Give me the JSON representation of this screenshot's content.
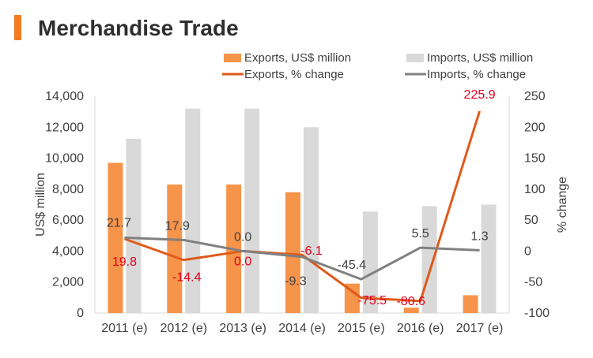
{
  "header": {
    "title": "Merchandise Trade",
    "accent_color": "#f47b20"
  },
  "chart_data": {
    "type": "bar",
    "categories": [
      "2011 (e)",
      "2012 (e)",
      "2013 (e)",
      "2014 (e)",
      "2015 (e)",
      "2016 (e)",
      "2017 (e)"
    ],
    "series": [
      {
        "name": "Exports, US$ million",
        "type": "bar",
        "axis": "left",
        "color": "#f6944a",
        "values": [
          9700,
          8300,
          8300,
          7800,
          1900,
          350,
          1150
        ]
      },
      {
        "name": "Imports, US$ million",
        "type": "bar",
        "axis": "left",
        "color": "#d9d9d9",
        "values": [
          11250,
          13200,
          13200,
          12000,
          6550,
          6900,
          7000
        ]
      },
      {
        "name": "Exports, % change",
        "type": "line",
        "axis": "right",
        "color": "#e05a1a",
        "values": [
          19.8,
          -14.4,
          0.0,
          -6.1,
          -75.5,
          -80.6,
          225.9
        ],
        "labels": [
          "19.8",
          "-14.4",
          "0.0",
          "-6.1",
          "-75.5",
          "-80.6",
          "225.9"
        ],
        "label_color": "#e0001b"
      },
      {
        "name": "Imports, % change",
        "type": "line",
        "axis": "right",
        "color": "#808080",
        "values": [
          21.7,
          17.9,
          0.0,
          -9.3,
          -45.4,
          5.5,
          1.3
        ],
        "labels": [
          "21.7",
          "17.9",
          "0.0",
          "-9.3",
          "-45.4",
          "5.5",
          "1.3"
        ],
        "label_color": "#404040"
      }
    ],
    "ylabel": "US$ million",
    "ylim": [
      0,
      14000
    ],
    "yticks": [
      "0",
      "2,000",
      "4,000",
      "6,000",
      "8,000",
      "10,000",
      "12,000",
      "14,000"
    ],
    "y2label": "% change",
    "y2lim": [
      -100,
      250
    ],
    "y2ticks": [
      "-100",
      "-50",
      "0",
      "50",
      "100",
      "150",
      "200",
      "250"
    ],
    "legend_position": "top",
    "grid": false
  }
}
